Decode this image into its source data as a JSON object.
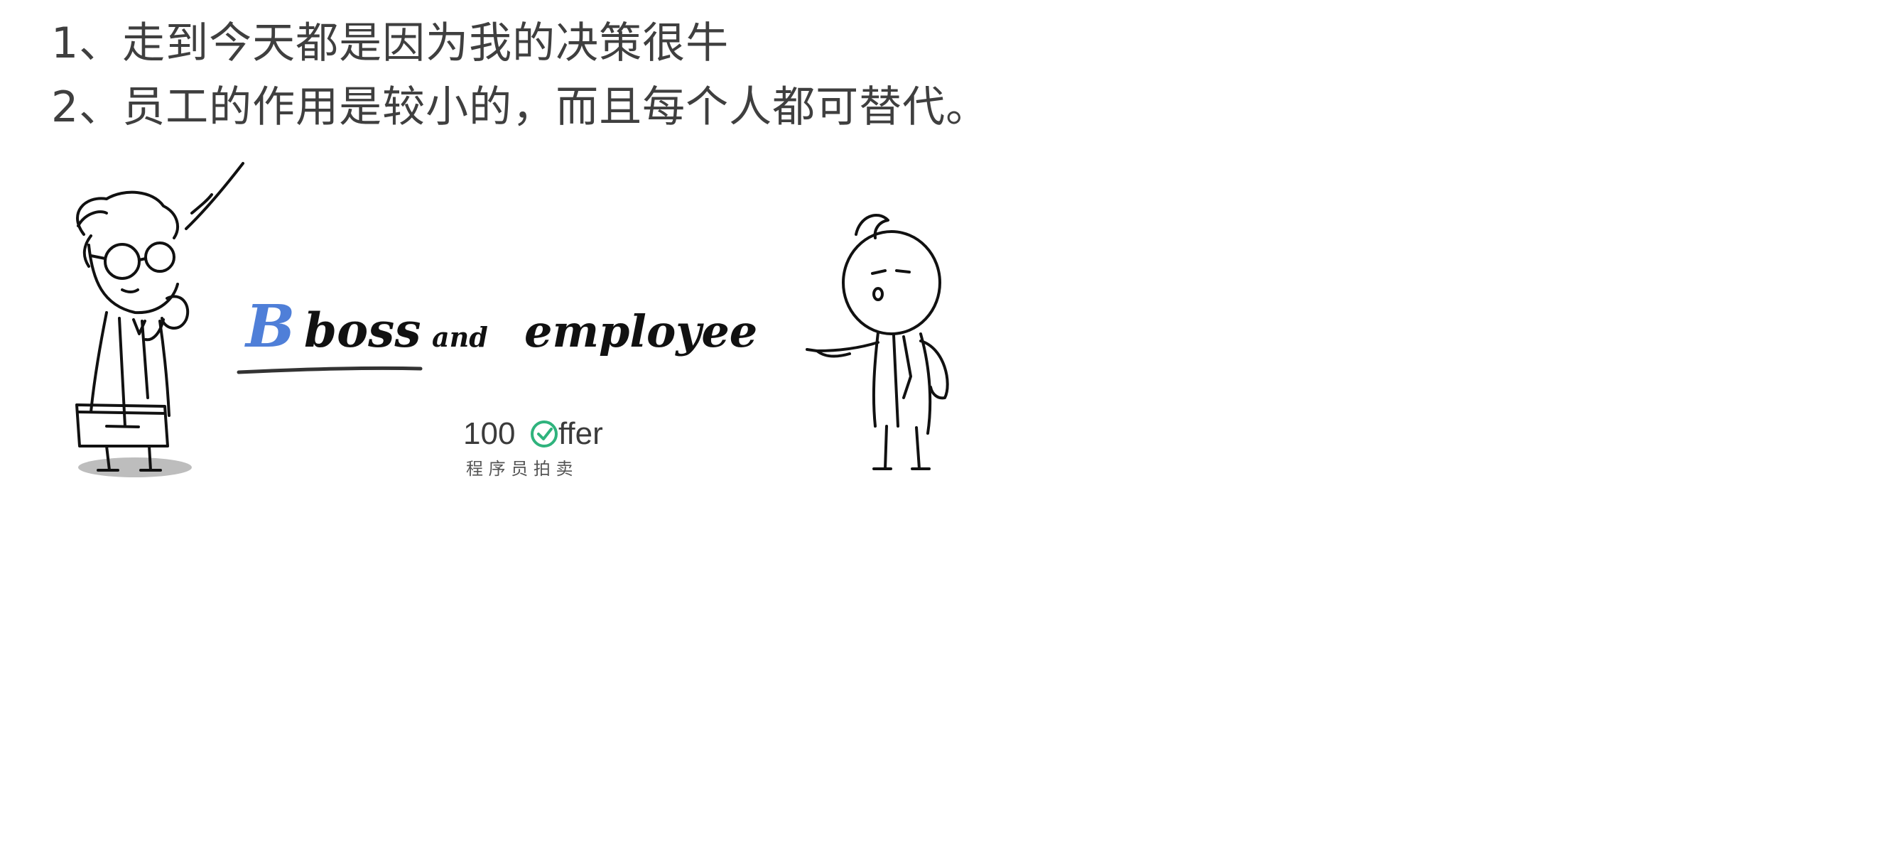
{
  "caption": {
    "line1": "1、走到今天都是因为我的决策很牛",
    "line2": "2、员工的作用是较小的，而且每个人都可替代。"
  },
  "headline": {
    "initial": "B",
    "word1": "boss",
    "word2": "and",
    "word3": "employee"
  },
  "logo": {
    "number": "100",
    "brand": "ffer",
    "subtitle": "程 序 员 拍 卖"
  },
  "colors": {
    "text": "#3f3f3f",
    "accent": "#4f7fd8",
    "ink": "#111111",
    "logo_green": "#2fb37d"
  }
}
